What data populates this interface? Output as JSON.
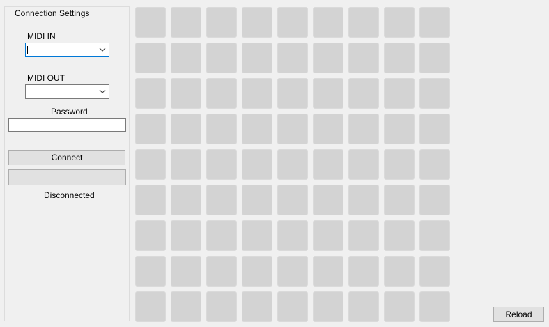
{
  "connection": {
    "group_title": "Connection Settings",
    "midi_in_label": "MIDI IN",
    "midi_in_value": "",
    "midi_out_label": "MIDI OUT",
    "midi_out_value": "",
    "password_label": "Password",
    "password_value": "",
    "connect_label": "Connect",
    "secondary_button_label": "",
    "status_text": "Disconnected"
  },
  "pads": {
    "rows": 9,
    "columns": 9,
    "color": "#d3d3d3"
  },
  "reload_label": "Reload",
  "icons": {
    "dropdown": "chevron-down-icon"
  }
}
